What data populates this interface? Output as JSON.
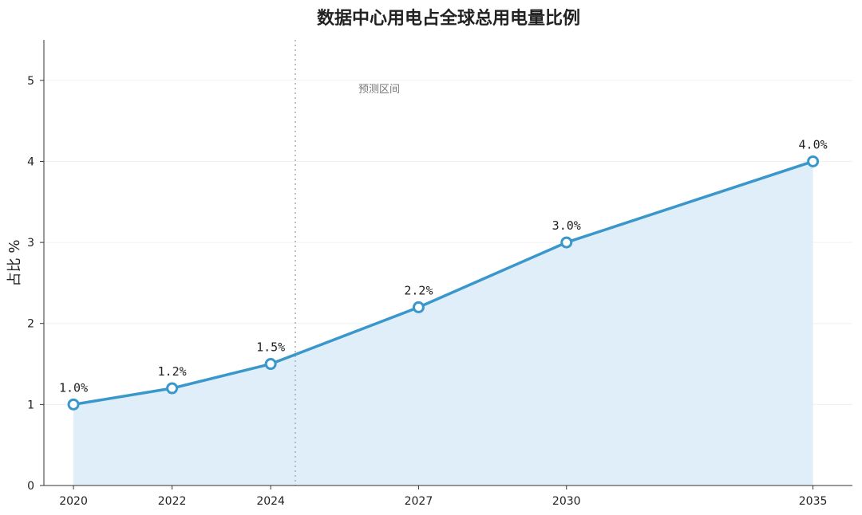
{
  "chart_data": {
    "type": "area",
    "title": "数据中心用电占全球总用电量比例",
    "xlabel": "",
    "ylabel": "占比 %",
    "x": [
      2020,
      2022,
      2024,
      2027,
      2030,
      2035
    ],
    "series": [
      {
        "values": [
          1.0,
          1.2,
          1.5,
          2.2,
          3.0,
          4.0
        ]
      }
    ],
    "data_labels": [
      "1.0%",
      "1.2%",
      "1.5%",
      "2.2%",
      "3.0%",
      "4.0%"
    ],
    "x_ticks": [
      "2020",
      "2022",
      "2024",
      "2027",
      "2030",
      "2035"
    ],
    "y_ticks": [
      "0",
      "1",
      "2",
      "3",
      "4",
      "5"
    ],
    "xlim": [
      2019.4,
      2035.8
    ],
    "ylim": [
      0,
      5.5
    ],
    "forecast_divider_x": 2024.5,
    "forecast_label": "预测区间",
    "grid": "y-only, faint",
    "colors": {
      "line": "#3a97cc",
      "fill": "#dcecf8",
      "marker_fill": "#ffffff",
      "divider": "#aaaaaa"
    }
  }
}
